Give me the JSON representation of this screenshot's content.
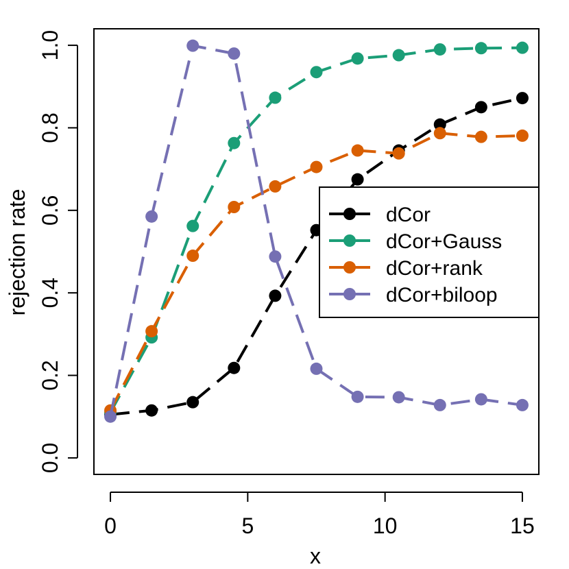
{
  "chart_data": {
    "type": "line",
    "title": "",
    "xlabel": "x",
    "ylabel": "rejection rate",
    "xlim": [
      -0.6,
      15.6
    ],
    "ylim": [
      -0.04,
      1.04
    ],
    "x_ticks": [
      0,
      5,
      10,
      15
    ],
    "x_tick_labels": [
      "0",
      "5",
      "10",
      "15"
    ],
    "y_ticks": [
      0.0,
      0.2,
      0.4,
      0.6,
      0.8,
      1.0
    ],
    "y_tick_labels": [
      "0.0",
      "0.2",
      "0.4",
      "0.6",
      "0.8",
      "1.0"
    ],
    "grid": false,
    "legend_position": "right",
    "x": [
      0,
      1.5,
      3,
      4.5,
      6,
      7.5,
      9,
      10.5,
      12,
      13.5,
      15
    ],
    "series": [
      {
        "name": "dCor",
        "color": "#000000",
        "values": [
          0.105,
          0.115,
          0.135,
          0.218,
          0.393,
          0.552,
          0.675,
          0.745,
          0.808,
          0.85,
          0.872
        ]
      },
      {
        "name": "dCor+Gauss",
        "color": "#1b9e77",
        "values": [
          0.11,
          0.292,
          0.562,
          0.763,
          0.873,
          0.935,
          0.968,
          0.976,
          0.99,
          0.993,
          0.994
        ]
      },
      {
        "name": "dCor+rank",
        "color": "#d95f02",
        "values": [
          0.115,
          0.307,
          0.49,
          0.608,
          0.658,
          0.705,
          0.745,
          0.738,
          0.787,
          0.778,
          0.781
        ]
      },
      {
        "name": "dCor+biloop",
        "color": "#7570b3",
        "values": [
          0.1,
          0.585,
          0.999,
          0.98,
          0.488,
          0.216,
          0.148,
          0.147,
          0.128,
          0.142,
          0.128
        ]
      }
    ]
  }
}
